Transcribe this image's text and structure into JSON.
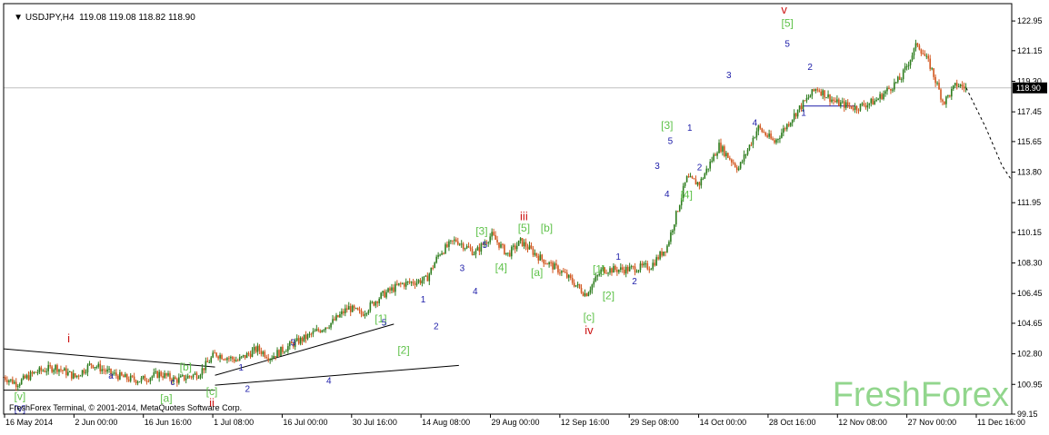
{
  "header": {
    "symbol_line": "USDJPY,H4  119.08 119.08 118.82 118.90"
  },
  "footer": {
    "copyright": "FreshForex Terminal, © 2001-2014, MetaQuotes Software Corp.",
    "watermark": "FreshForex"
  },
  "colors": {
    "candle_up": "#2e7d1f",
    "candle_down": "#d2561e",
    "wave_blue": "#1c1ca8",
    "wave_green": "#5fc24a",
    "wave_red": "#cc1111",
    "axis": "#000000",
    "price_line": "#c0c0c0"
  },
  "chart_data": {
    "type": "candlestick",
    "symbol": "USDJPY",
    "timeframe": "H4",
    "last_price": 118.9,
    "ylim": [
      99.15,
      124.0
    ],
    "y_ticks": [
      "122.95",
      "121.15",
      "119.30",
      "117.45",
      "115.65",
      "113.80",
      "111.95",
      "110.15",
      "108.30",
      "106.45",
      "104.65",
      "102.80",
      "100.95",
      "99.15"
    ],
    "x_ticks": [
      "16 May 2014",
      "2 Jun 00:00",
      "16 Jun 16:00",
      "1 Jul 08:00",
      "16 Jul 00:00",
      "30 Jul 16:00",
      "14 Aug 08:00",
      "29 Aug 00:00",
      "12 Sep 16:00",
      "29 Sep 08:00",
      "14 Oct 00:00",
      "28 Oct 16:00",
      "12 Nov 08:00",
      "27 Nov 00:00",
      "11 Dec 16:00"
    ],
    "price_path": [
      [
        0,
        101.4
      ],
      [
        4,
        101.0
      ],
      [
        10,
        101.7
      ],
      [
        16,
        102.0
      ],
      [
        22,
        101.4
      ],
      [
        27,
        102.2
      ],
      [
        33,
        101.6
      ],
      [
        38,
        101.3
      ],
      [
        42,
        101.2
      ],
      [
        48,
        101.6
      ],
      [
        53,
        101.2
      ],
      [
        60,
        101.6
      ],
      [
        65,
        102.8
      ],
      [
        72,
        102.4
      ],
      [
        78,
        103.1
      ],
      [
        82,
        102.6
      ],
      [
        88,
        103.3
      ],
      [
        94,
        103.9
      ],
      [
        101,
        104.7
      ],
      [
        106,
        105.6
      ],
      [
        110,
        105.2
      ],
      [
        116,
        106.3
      ],
      [
        122,
        107.0
      ],
      [
        130,
        107.3
      ],
      [
        134,
        108.9
      ],
      [
        139,
        109.7
      ],
      [
        145,
        108.9
      ],
      [
        150,
        110.0
      ],
      [
        155,
        108.8
      ],
      [
        159,
        109.6
      ],
      [
        165,
        108.6
      ],
      [
        172,
        107.7
      ],
      [
        179,
        106.4
      ],
      [
        184,
        107.9
      ],
      [
        191,
        107.9
      ],
      [
        199,
        108.1
      ],
      [
        204,
        109.3
      ],
      [
        210,
        113.4
      ],
      [
        214,
        113.1
      ],
      [
        220,
        115.4
      ],
      [
        226,
        114.0
      ],
      [
        232,
        116.5
      ],
      [
        237,
        115.6
      ],
      [
        244,
        117.5
      ],
      [
        250,
        118.9
      ],
      [
        256,
        118.0
      ],
      [
        262,
        117.7
      ],
      [
        268,
        118.1
      ],
      [
        276,
        119.5
      ],
      [
        281,
        121.6
      ],
      [
        285,
        120.2
      ],
      [
        289,
        118.0
      ],
      [
        293,
        119.1
      ],
      [
        296,
        118.9
      ]
    ],
    "projection": [
      [
        296,
        118.9
      ],
      [
        302,
        116.5
      ],
      [
        307,
        114.2
      ],
      [
        310,
        113.3
      ]
    ],
    "lines": [
      {
        "from": [
          0,
          103.1
        ],
        "to": [
          65,
          102.0
        ]
      },
      {
        "from": [
          0,
          100.6
        ],
        "to": [
          65,
          100.6
        ]
      },
      {
        "from": [
          65,
          101.5
        ],
        "to": [
          120,
          104.6
        ]
      },
      {
        "from": [
          65,
          100.9
        ],
        "to": [
          140,
          102.1
        ]
      },
      {
        "from": [
          246,
          117.8
        ],
        "to": [
          262,
          117.8
        ]
      }
    ],
    "labels": [
      {
        "text": "i",
        "x": 20,
        "y": 103.5,
        "color": "red"
      },
      {
        "text": "ii",
        "x": 64,
        "y": 99.6,
        "color": "red"
      },
      {
        "text": "iii",
        "x": 160,
        "y": 110.9,
        "color": "red"
      },
      {
        "text": "iv",
        "x": 180,
        "y": 104.0,
        "color": "red"
      },
      {
        "text": "v",
        "x": 240,
        "y": 123.4,
        "color": "red"
      },
      {
        "text": "[v]",
        "x": 5,
        "y": 100.0,
        "color": "green"
      },
      {
        "text": "[a]",
        "x": 50,
        "y": 99.9,
        "color": "green"
      },
      {
        "text": "[b]",
        "x": 56,
        "y": 101.8,
        "color": "green"
      },
      {
        "text": "[c]",
        "x": 64,
        "y": 100.3,
        "color": "green"
      },
      {
        "text": "[1]",
        "x": 116,
        "y": 104.7,
        "color": "green"
      },
      {
        "text": "[2]",
        "x": 123,
        "y": 102.8,
        "color": "green"
      },
      {
        "text": "[3]",
        "x": 147,
        "y": 110.0,
        "color": "green"
      },
      {
        "text": "[4]",
        "x": 153,
        "y": 107.8,
        "color": "green"
      },
      {
        "text": "[5]",
        "x": 160,
        "y": 110.2,
        "color": "green"
      },
      {
        "text": "[a]",
        "x": 164,
        "y": 107.5,
        "color": "green"
      },
      {
        "text": "[b]",
        "x": 167,
        "y": 110.2,
        "color": "green"
      },
      {
        "text": "[c]",
        "x": 180,
        "y": 104.8,
        "color": "green"
      },
      {
        "text": "[1]",
        "x": 183,
        "y": 107.7,
        "color": "green"
      },
      {
        "text": "[2]",
        "x": 186,
        "y": 106.1,
        "color": "green"
      },
      {
        "text": "[3]",
        "x": 204,
        "y": 116.4,
        "color": "green"
      },
      {
        "text": "[4]",
        "x": 210,
        "y": 112.2,
        "color": "green"
      },
      {
        "text": "[5]",
        "x": 241,
        "y": 122.6,
        "color": "green"
      },
      {
        "text": "[V]",
        "x": 5,
        "y": 99.3,
        "color": "blue"
      },
      {
        "text": "a",
        "x": 33,
        "y": 101.3,
        "color": "blue"
      },
      {
        "text": "c",
        "x": 52,
        "y": 100.9,
        "color": "blue"
      },
      {
        "text": "1",
        "x": 73,
        "y": 101.8,
        "color": "blue"
      },
      {
        "text": "2",
        "x": 75,
        "y": 100.5,
        "color": "blue"
      },
      {
        "text": "3",
        "x": 89,
        "y": 103.3,
        "color": "blue"
      },
      {
        "text": "4",
        "x": 100,
        "y": 101.0,
        "color": "blue"
      },
      {
        "text": "5",
        "x": 117,
        "y": 104.5,
        "color": "blue"
      },
      {
        "text": "1",
        "x": 129,
        "y": 105.9,
        "color": "blue"
      },
      {
        "text": "2",
        "x": 133,
        "y": 104.3,
        "color": "blue"
      },
      {
        "text": "3",
        "x": 141,
        "y": 107.8,
        "color": "blue"
      },
      {
        "text": "4",
        "x": 145,
        "y": 106.4,
        "color": "blue"
      },
      {
        "text": "5",
        "x": 148,
        "y": 109.2,
        "color": "blue"
      },
      {
        "text": "1",
        "x": 189,
        "y": 108.5,
        "color": "blue"
      },
      {
        "text": "2",
        "x": 194,
        "y": 107.0,
        "color": "blue"
      },
      {
        "text": "3",
        "x": 201,
        "y": 114.0,
        "color": "blue"
      },
      {
        "text": "4",
        "x": 204,
        "y": 112.3,
        "color": "blue"
      },
      {
        "text": "5",
        "x": 205,
        "y": 115.5,
        "color": "blue"
      },
      {
        "text": "1",
        "x": 211,
        "y": 116.3,
        "color": "blue"
      },
      {
        "text": "2",
        "x": 214,
        "y": 113.9,
        "color": "blue"
      },
      {
        "text": "3",
        "x": 223,
        "y": 119.5,
        "color": "blue"
      },
      {
        "text": "4",
        "x": 231,
        "y": 116.6,
        "color": "blue"
      },
      {
        "text": "5",
        "x": 241,
        "y": 121.4,
        "color": "blue"
      },
      {
        "text": "2",
        "x": 248,
        "y": 120.0,
        "color": "blue"
      },
      {
        "text": "1",
        "x": 246,
        "y": 117.2,
        "color": "blue"
      }
    ]
  }
}
